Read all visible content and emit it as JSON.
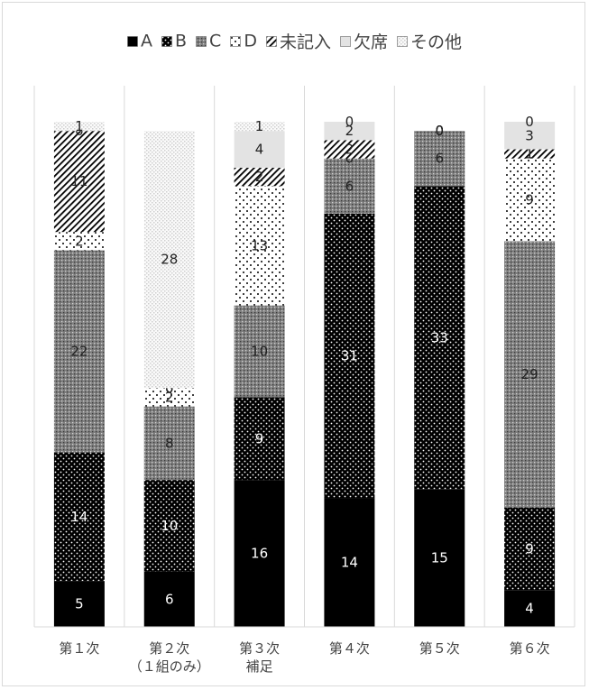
{
  "chart_data": {
    "type": "bar",
    "stacked": true,
    "categories": [
      [
        "第１次"
      ],
      [
        "第２次",
        "（１組のみ）"
      ],
      [
        "第３次",
        "補足"
      ],
      [
        "第４次"
      ],
      [
        "第５次"
      ],
      [
        "第６次"
      ]
    ],
    "series": [
      {
        "name": "A",
        "values": [
          5,
          6,
          16,
          14,
          15,
          4
        ],
        "pattern": "solid",
        "color": "#000000"
      },
      {
        "name": "B",
        "values": [
          14,
          10,
          9,
          31,
          33,
          9
        ],
        "pattern": "dots-on-black",
        "color": "#000000"
      },
      {
        "name": "C",
        "values": [
          22,
          8,
          10,
          6,
          6,
          29
        ],
        "pattern": "grey-dots",
        "color": "#8c8c8c"
      },
      {
        "name": "D",
        "values": [
          2,
          2,
          13,
          0,
          0,
          9
        ],
        "pattern": "sparse-dots",
        "color": "#ffffff"
      },
      {
        "name": "未記入",
        "values": [
          11,
          0,
          2,
          2,
          0,
          1
        ],
        "pattern": "diagonal",
        "color": "#ffffff"
      },
      {
        "name": "欠席",
        "values": [
          0,
          0,
          4,
          2,
          0,
          3
        ],
        "pattern": "light-grey",
        "color": "#e3e3e3"
      },
      {
        "name": "その他",
        "values": [
          1,
          28,
          1,
          0,
          0,
          0
        ],
        "pattern": "faint-dots",
        "color": "#f0f0f0"
      }
    ],
    "ymax": 55,
    "legend_position": "top",
    "gridlines": false
  }
}
